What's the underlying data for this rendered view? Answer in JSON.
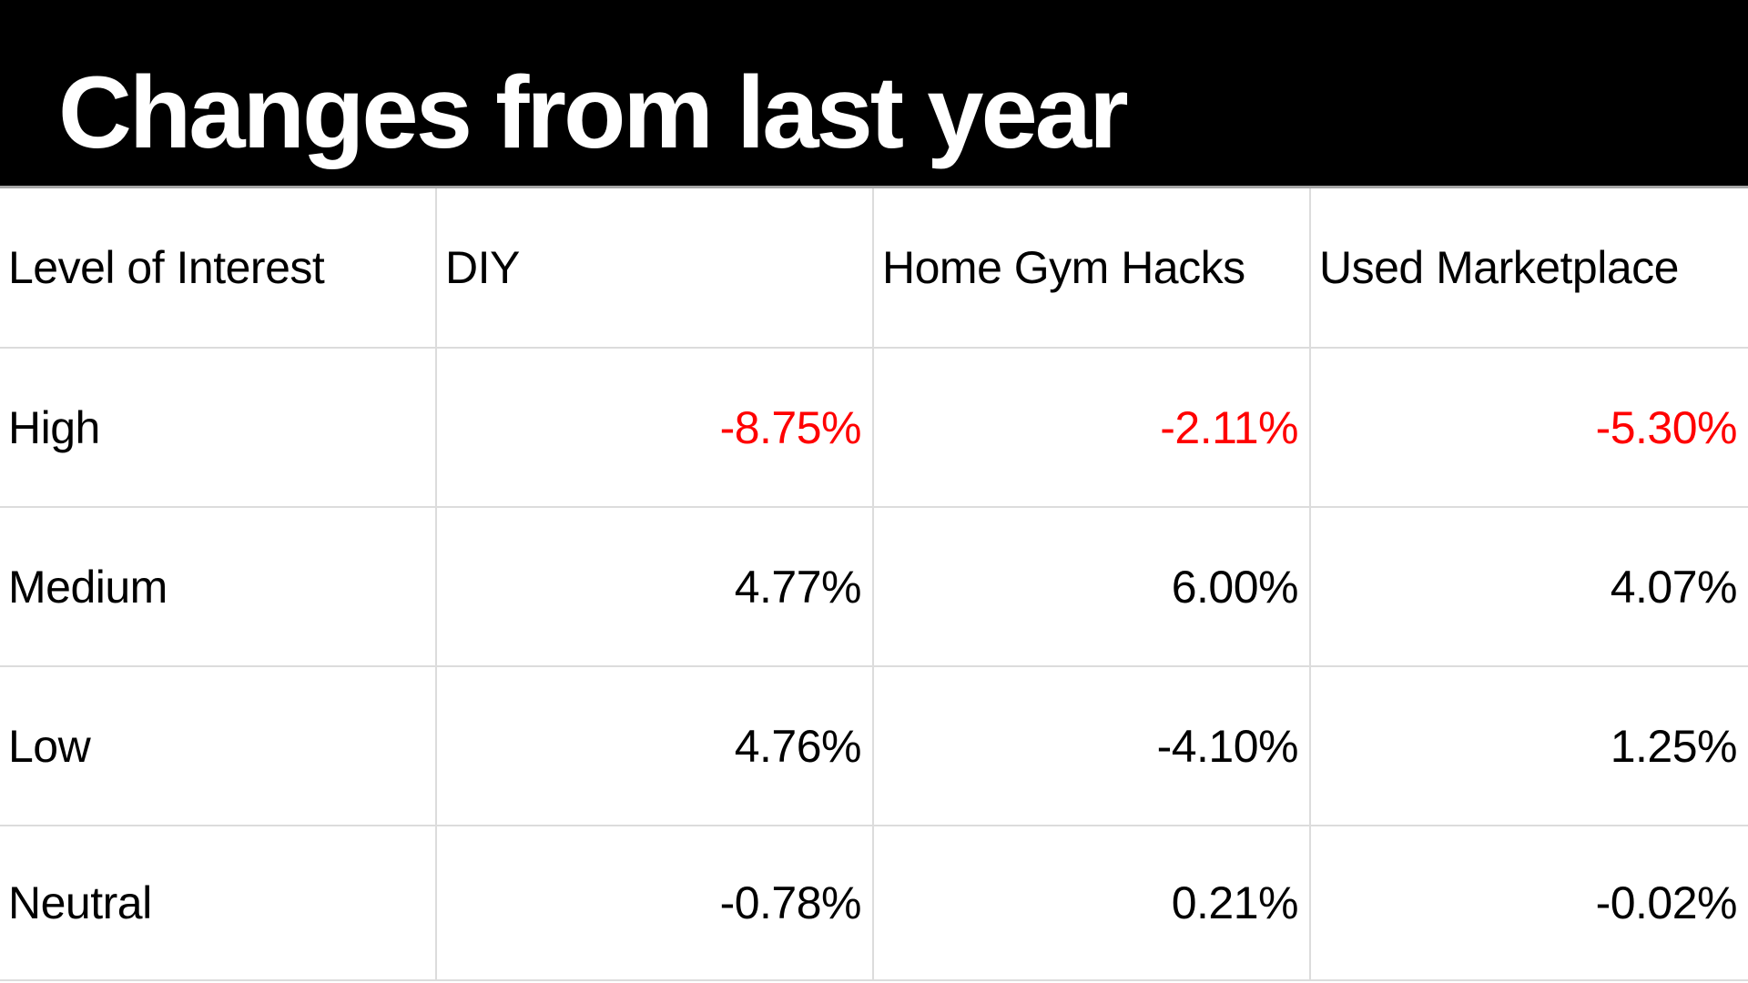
{
  "title": "Changes from last year",
  "colors": {
    "title_bar_bg": "#000000",
    "title_text": "#ffffff",
    "title_bar_rule": "#a6a6a6",
    "grid_line": "#dcdcdc",
    "cell_text": "#000000",
    "negative_highlight_red": "#ff0000"
  },
  "table": {
    "headers": [
      "Level of Interest",
      "DIY",
      "Home Gym Hacks",
      "Used Marketplace"
    ],
    "rows": [
      {
        "label": "High",
        "values": [
          "-8.75%",
          "-2.11%",
          "-5.30%"
        ],
        "values_color": "#ff0000"
      },
      {
        "label": "Medium",
        "values": [
          "4.77%",
          "6.00%",
          "4.07%"
        ],
        "values_color": "#000000"
      },
      {
        "label": "Low",
        "values": [
          "4.76%",
          "-4.10%",
          "1.25%"
        ],
        "values_color": "#000000"
      },
      {
        "label": "Neutral",
        "values": [
          "-0.78%",
          "0.21%",
          "-0.02%"
        ],
        "values_color": "#000000"
      }
    ]
  },
  "chart_data": {
    "type": "table",
    "title": "Changes from last year",
    "columns": [
      "Level of Interest",
      "DIY",
      "Home Gym Hacks",
      "Used Marketplace"
    ],
    "categories": [
      "High",
      "Medium",
      "Low",
      "Neutral"
    ],
    "series": [
      {
        "name": "DIY",
        "values": [
          -8.75,
          4.77,
          4.76,
          -0.78
        ]
      },
      {
        "name": "Home Gym Hacks",
        "values": [
          -2.11,
          6.0,
          -4.1,
          0.21
        ]
      },
      {
        "name": "Used Marketplace",
        "values": [
          -5.3,
          4.07,
          1.25,
          -0.02
        ]
      }
    ],
    "unit": "%",
    "notes": "Values in the High row are rendered in red; all other values are black. Value cells right-aligned, labels left-aligned."
  }
}
